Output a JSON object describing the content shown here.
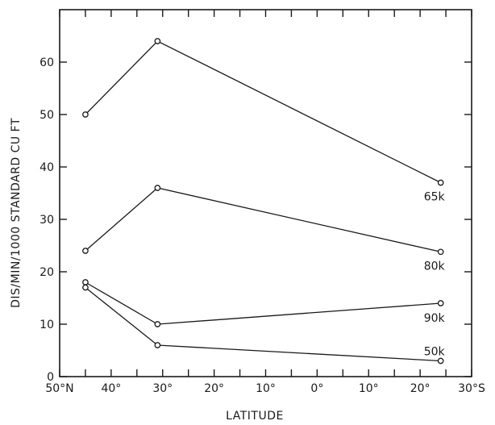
{
  "chart_data": {
    "type": "line",
    "xlabel": "LATITUDE",
    "ylabel": "DIS/MIN/1000 STANDARD CU FT",
    "xlim": [
      -50,
      30
    ],
    "ylim": [
      0,
      70
    ],
    "x_ticks": [
      -50,
      -45,
      -40,
      -35,
      -30,
      -25,
      -20,
      -15,
      -10,
      -5,
      0,
      5,
      10,
      15,
      20,
      25,
      30
    ],
    "x_tick_labels": [
      {
        "value": -50,
        "label": "50°N"
      },
      {
        "value": -40,
        "label": "40°"
      },
      {
        "value": -30,
        "label": "30°"
      },
      {
        "value": -20,
        "label": "20°"
      },
      {
        "value": -10,
        "label": "10°"
      },
      {
        "value": 0,
        "label": "0°"
      },
      {
        "value": 10,
        "label": "10°"
      },
      {
        "value": 20,
        "label": "20°"
      },
      {
        "value": 30,
        "label": "30°S"
      }
    ],
    "y_ticks": [
      0,
      10,
      20,
      30,
      40,
      50,
      60
    ],
    "y_tick_labels": [
      "0",
      "10",
      "20",
      "30",
      "40",
      "50",
      "60"
    ],
    "series": [
      {
        "name": "65k",
        "x": [
          -45,
          -31,
          24
        ],
        "y": [
          50,
          64,
          37
        ]
      },
      {
        "name": "80k",
        "x": [
          -45,
          -31,
          24
        ],
        "y": [
          24,
          36,
          23.8
        ]
      },
      {
        "name": "90k",
        "x": [
          -45,
          -31,
          24
        ],
        "y": [
          18,
          10,
          14
        ]
      },
      {
        "name": "50k",
        "x": [
          -45,
          -31,
          24
        ],
        "y": [
          17,
          6,
          3
        ]
      }
    ],
    "grid": false,
    "legend": "labels at right end of each line"
  }
}
